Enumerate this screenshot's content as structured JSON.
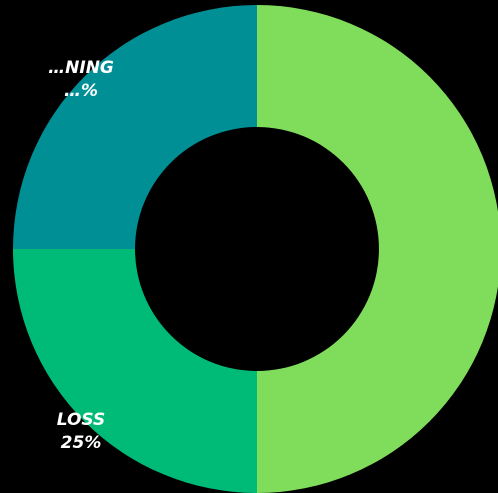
{
  "chart_data": {
    "type": "pie",
    "donut": true,
    "slices": [
      {
        "value": 50,
        "color": "#80dc5b"
      },
      {
        "label_line1": "LOSS",
        "label_line2": "25%",
        "value": 25,
        "color": "#00bb78"
      },
      {
        "label_line1": "…NING",
        "label_line2": "…%",
        "value": 25,
        "color": "#008f95"
      }
    ],
    "background": "#000000"
  }
}
